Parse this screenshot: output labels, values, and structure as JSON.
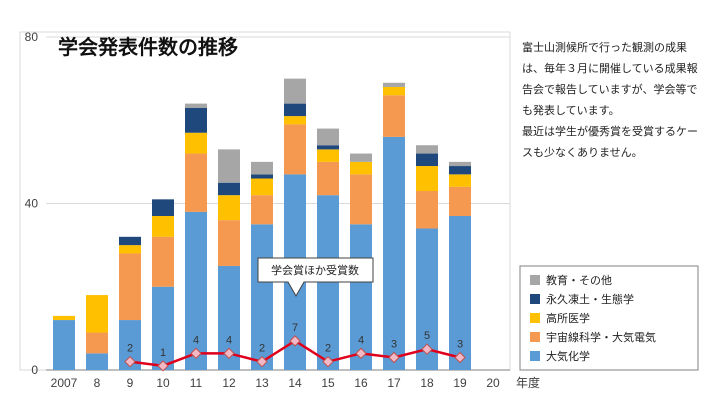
{
  "chart_data": {
    "type": "bar",
    "title": "学会発表件数の推移",
    "xlabel": "年度",
    "ylabel": "",
    "ylim": [
      0,
      80
    ],
    "yticks": [
      0,
      40,
      80
    ],
    "stacked": true,
    "grid": true,
    "legend_position": "right-bottom",
    "categories": [
      "2007",
      "8",
      "9",
      "10",
      "11",
      "12",
      "13",
      "14",
      "15",
      "16",
      "17",
      "18",
      "19",
      "20"
    ],
    "series": [
      {
        "name": "大気化学",
        "color": "#5b9bd5",
        "values": [
          12,
          4,
          12,
          20,
          38,
          25,
          35,
          47,
          42,
          35,
          56,
          34,
          37,
          0
        ]
      },
      {
        "name": "宇宙線科学・大気電気",
        "color": "#f4994f",
        "values": [
          0,
          5,
          16,
          12,
          14,
          11,
          7,
          12,
          8,
          12,
          10,
          9,
          7,
          0
        ]
      },
      {
        "name": "高所医学",
        "color": "#ffc000",
        "values": [
          1,
          9,
          2,
          5,
          5,
          6,
          4,
          2,
          3,
          3,
          2,
          6,
          3,
          0
        ]
      },
      {
        "name": "永久凍土・生態学",
        "color": "#1f497d",
        "values": [
          0,
          0,
          2,
          4,
          6,
          3,
          1,
          3,
          1,
          0,
          0,
          3,
          2,
          0
        ]
      },
      {
        "name": "教育・その他",
        "color": "#a6a6a6",
        "values": [
          0,
          0,
          0,
          0,
          1,
          8,
          3,
          6,
          4,
          2,
          1,
          2,
          1,
          0
        ]
      }
    ],
    "awards": {
      "label": "学会賞ほか受賞数",
      "color": "#e0001b",
      "marker_color": "#f2b8c6",
      "categories": [
        "9",
        "10",
        "11",
        "12",
        "13",
        "14",
        "15",
        "16",
        "17",
        "18",
        "19"
      ],
      "values": [
        2,
        1,
        4,
        4,
        2,
        7,
        2,
        4,
        3,
        5,
        3
      ]
    }
  },
  "note": {
    "paragraph1": "富士山測候所で行った観測の成果は、毎年３月に開催している成果報告会で報告していますが、学会等でも発表しています。",
    "paragraph2": "最近は学生が優秀賞を受賞するケースも少なくありません。"
  }
}
